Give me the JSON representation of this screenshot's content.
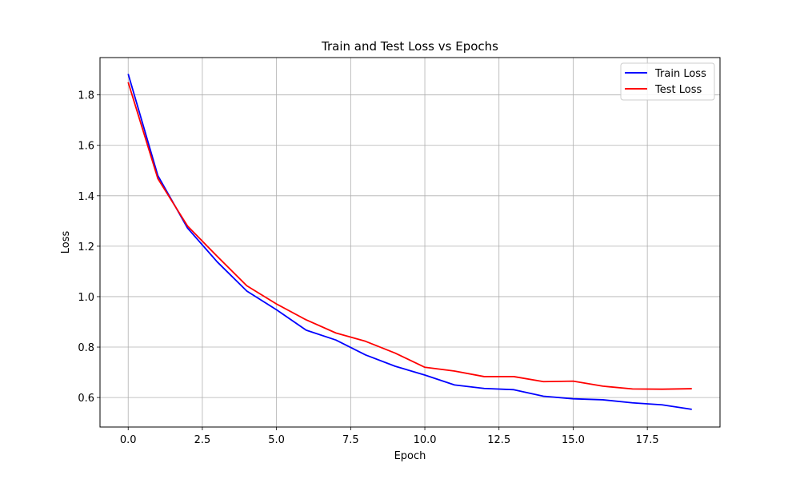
{
  "chart_data": {
    "type": "line",
    "title": "Train and Test Loss vs Epochs",
    "xlabel": "Epoch",
    "ylabel": "Loss",
    "xlim": [
      -0.95,
      19.95
    ],
    "ylim": [
      0.483,
      1.948
    ],
    "xticks": [
      0.0,
      2.5,
      5.0,
      7.5,
      10.0,
      12.5,
      15.0,
      17.5
    ],
    "xtick_labels": [
      "0.0",
      "2.5",
      "5.0",
      "7.5",
      "10.0",
      "12.5",
      "15.0",
      "17.5"
    ],
    "yticks": [
      0.6,
      0.8,
      1.0,
      1.2,
      1.4,
      1.6,
      1.8
    ],
    "ytick_labels": [
      "0.6",
      "0.8",
      "1.0",
      "1.2",
      "1.4",
      "1.6",
      "1.8"
    ],
    "grid": true,
    "legend_position": "top-right",
    "x": [
      0,
      1,
      2,
      3,
      4,
      5,
      6,
      7,
      8,
      9,
      10,
      11,
      12,
      13,
      14,
      15,
      16,
      17,
      18,
      19
    ],
    "series": [
      {
        "name": "Train Loss",
        "color": "#0000ff",
        "values": [
          1.883,
          1.48,
          1.272,
          1.138,
          1.022,
          0.948,
          0.867,
          0.828,
          0.769,
          0.724,
          0.689,
          0.65,
          0.636,
          0.631,
          0.605,
          0.595,
          0.591,
          0.579,
          0.571,
          0.553
        ]
      },
      {
        "name": "Test Loss",
        "color": "#ff0000",
        "values": [
          1.85,
          1.468,
          1.28,
          1.16,
          1.043,
          0.971,
          0.908,
          0.856,
          0.823,
          0.776,
          0.72,
          0.705,
          0.683,
          0.683,
          0.663,
          0.665,
          0.645,
          0.634,
          0.633,
          0.635
        ]
      }
    ]
  }
}
